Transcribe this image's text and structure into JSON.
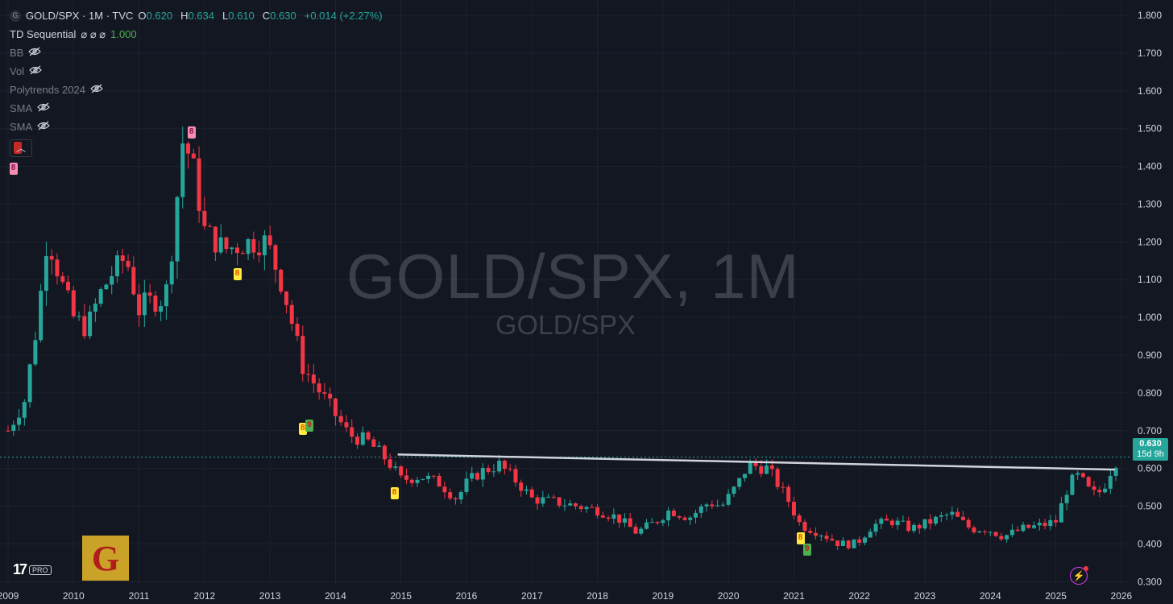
{
  "header": {
    "symbol_icon": "G",
    "title": "GOLD/SPX · 1M · TVC",
    "ohlc": [
      {
        "k": "O",
        "v": "0.620"
      },
      {
        "k": "H",
        "v": "0.634"
      },
      {
        "k": "L",
        "v": "0.610"
      },
      {
        "k": "C",
        "v": "0.630"
      }
    ],
    "change": "+0.014 (+2.27%)"
  },
  "indicators": [
    {
      "name": "TD Sequential",
      "value": "1.000",
      "hidden": false
    },
    {
      "name": "BB",
      "hidden": true
    },
    {
      "name": "Vol",
      "hidden": true
    },
    {
      "name": "Polytrends 2024",
      "hidden": true
    },
    {
      "name": "SMA",
      "hidden": true
    },
    {
      "name": "SMA",
      "hidden": true
    }
  ],
  "watermark": {
    "main": "GOLD/SPX, 1M",
    "sub": "GOLD/SPX"
  },
  "price_tag": {
    "value": "0.630",
    "countdown": "15d 9h"
  },
  "branding": {
    "tv_logo": "17",
    "pro": "PRO",
    "g_logo": "G"
  },
  "colors": {
    "up": "#26a69a",
    "down": "#f23645",
    "background": "#131722",
    "trendline": "#d1d4dc",
    "bolt": "#e040fb"
  },
  "icons": {
    "eye_hidden": "eye-slash-icon",
    "bolt": "lightning-icon",
    "collapse": "chevron-up-icon"
  },
  "chart_data": {
    "type": "candlestick",
    "title": "GOLD/SPX",
    "interval": "1M",
    "y_axis": {
      "ticks": [
        "1.800",
        "1.700",
        "1.600",
        "1.500",
        "1.400",
        "1.300",
        "1.200",
        "1.100",
        "1.000",
        "0.900",
        "0.800",
        "0.700",
        "0.600",
        "0.500",
        "0.400",
        "0.300"
      ],
      "ylim": [
        0.29,
        1.83
      ],
      "position": "right"
    },
    "x_axis": {
      "ticks": [
        "2009",
        "2010",
        "2011",
        "2012",
        "2013",
        "2014",
        "2015",
        "2016",
        "2017",
        "2018",
        "2019",
        "2020",
        "2021",
        "2022",
        "2023",
        "2024",
        "2025",
        "2026"
      ],
      "xlim": [
        2009.0,
        2026.1
      ]
    },
    "keypoints": [
      [
        2009.0,
        0.7
      ],
      [
        2009.25,
        0.78
      ],
      [
        2009.45,
        0.99
      ],
      [
        2009.6,
        1.22
      ],
      [
        2009.8,
        1.1
      ],
      [
        2010.0,
        1.0
      ],
      [
        2010.2,
        0.97
      ],
      [
        2010.4,
        1.06
      ],
      [
        2010.6,
        1.12
      ],
      [
        2010.8,
        1.16
      ],
      [
        2011.0,
        1.02
      ],
      [
        2011.1,
        1.04
      ],
      [
        2011.4,
        1.05
      ],
      [
        2011.55,
        1.25
      ],
      [
        2011.65,
        1.47
      ],
      [
        2011.8,
        1.42
      ],
      [
        2012.0,
        1.23
      ],
      [
        2012.3,
        1.18
      ],
      [
        2012.7,
        1.2
      ],
      [
        2012.95,
        1.2
      ],
      [
        2013.2,
        1.08
      ],
      [
        2013.5,
        0.87
      ],
      [
        2013.85,
        0.78
      ],
      [
        2014.2,
        0.69
      ],
      [
        2014.5,
        0.67
      ],
      [
        2014.8,
        0.62
      ],
      [
        2015.0,
        0.57
      ],
      [
        2015.3,
        0.58
      ],
      [
        2015.6,
        0.56
      ],
      [
        2015.85,
        0.52
      ],
      [
        2016.0,
        0.56
      ],
      [
        2016.2,
        0.59
      ],
      [
        2016.5,
        0.61
      ],
      [
        2016.8,
        0.56
      ],
      [
        2017.0,
        0.52
      ],
      [
        2017.4,
        0.51
      ],
      [
        2017.7,
        0.5
      ],
      [
        2018.0,
        0.49
      ],
      [
        2018.3,
        0.47
      ],
      [
        2018.6,
        0.43
      ],
      [
        2018.9,
        0.46
      ],
      [
        2019.1,
        0.49
      ],
      [
        2019.4,
        0.47
      ],
      [
        2019.7,
        0.51
      ],
      [
        2019.9,
        0.5
      ],
      [
        2020.15,
        0.56
      ],
      [
        2020.3,
        0.61
      ],
      [
        2020.6,
        0.6
      ],
      [
        2020.9,
        0.52
      ],
      [
        2021.1,
        0.45
      ],
      [
        2021.4,
        0.43
      ],
      [
        2021.7,
        0.4
      ],
      [
        2021.95,
        0.4
      ],
      [
        2022.2,
        0.45
      ],
      [
        2022.5,
        0.46
      ],
      [
        2022.8,
        0.44
      ],
      [
        2023.1,
        0.46
      ],
      [
        2023.4,
        0.48
      ],
      [
        2023.7,
        0.44
      ],
      [
        2023.95,
        0.44
      ],
      [
        2024.2,
        0.42
      ],
      [
        2024.5,
        0.44
      ],
      [
        2024.8,
        0.45
      ],
      [
        2025.0,
        0.46
      ],
      [
        2025.2,
        0.56
      ],
      [
        2025.35,
        0.58
      ],
      [
        2025.55,
        0.53
      ],
      [
        2025.7,
        0.54
      ],
      [
        2025.85,
        0.6
      ],
      [
        2025.95,
        0.63
      ]
    ],
    "trendline": {
      "from": [
        2014.95,
        0.637
      ],
      "to": [
        2025.9,
        0.597
      ]
    },
    "current_price_line": 0.63,
    "td_labels": [
      {
        "x": 2009.08,
        "y": 1.395,
        "text": "8",
        "style": "pink"
      },
      {
        "x": 2009.15,
        "y": 1.45,
        "text": "",
        "style": "red"
      },
      {
        "x": 2011.8,
        "y": 1.49,
        "text": "8",
        "style": "pink"
      },
      {
        "x": 2012.5,
        "y": 1.115,
        "text": "8",
        "style": "yellow"
      },
      {
        "x": 2013.5,
        "y": 0.705,
        "text": "8",
        "style": "yellow"
      },
      {
        "x": 2013.6,
        "y": 0.715,
        "text": "9",
        "style": "green"
      },
      {
        "x": 2014.9,
        "y": 0.535,
        "text": "8",
        "style": "yellow"
      },
      {
        "x": 2021.1,
        "y": 0.415,
        "text": "8",
        "style": "yellow"
      },
      {
        "x": 2021.2,
        "y": 0.385,
        "text": "9",
        "style": "green"
      }
    ]
  }
}
